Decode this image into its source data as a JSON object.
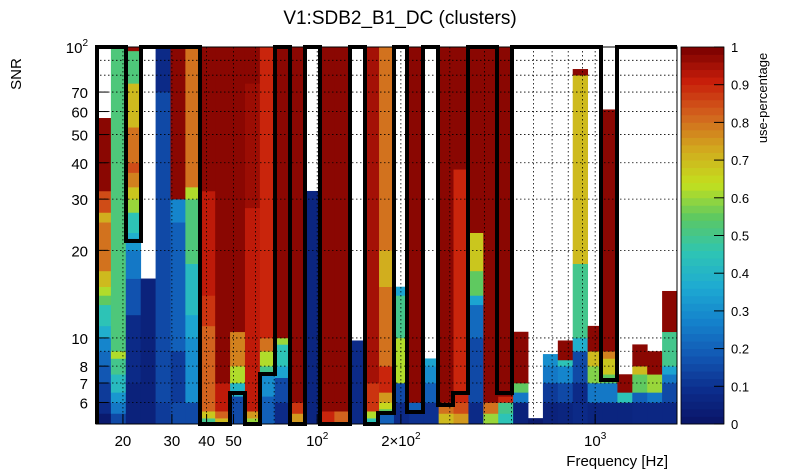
{
  "chart_data": {
    "type": "heatmap",
    "title": "V1:SDB2_B1_DC (clusters)",
    "xlabel": "Frequency [Hz]",
    "ylabel": "SNR",
    "zlabel": "use-percentage",
    "xscale": "log",
    "yscale": "log",
    "xlim": [
      16,
      1970
    ],
    "ylim": [
      5.06,
      100
    ],
    "zlim": [
      0,
      1
    ],
    "grid": true,
    "x_ticks": [
      {
        "value": 20,
        "label": "20"
      },
      {
        "value": 30,
        "label": "30"
      },
      {
        "value": 40,
        "label": "40"
      },
      {
        "value": 50,
        "label": "50"
      },
      {
        "value": 100,
        "label": "10",
        "exp": "2"
      },
      {
        "value": 200,
        "label": "2×10",
        "exp": "2"
      },
      {
        "value": 1000,
        "label": "10",
        "exp": "3"
      }
    ],
    "y_ticks": [
      {
        "value": 100,
        "label": "10",
        "exp": "2"
      },
      {
        "value": 70,
        "label": "70"
      },
      {
        "value": 60,
        "label": "60"
      },
      {
        "value": 50,
        "label": "50"
      },
      {
        "value": 40,
        "label": "40"
      },
      {
        "value": 30,
        "label": "30"
      },
      {
        "value": 20,
        "label": "20"
      },
      {
        "value": 10,
        "label": "10"
      },
      {
        "value": 8,
        "label": "8"
      },
      {
        "value": 7,
        "label": "7"
      },
      {
        "value": 6,
        "label": "6"
      }
    ],
    "z_ticks": [
      "0",
      "0.1",
      "0.2",
      "0.3",
      "0.4",
      "0.5",
      "0.6",
      "0.7",
      "0.8",
      "0.9",
      "1"
    ],
    "columns_note": "each column = log-frequency bin; segments [upper SNR, use-percentage], starting at ylim[0]; null = empty",
    "columns": [
      [
        [
          5.5,
          0.02
        ],
        [
          6,
          0.08
        ],
        [
          7,
          0.12
        ],
        [
          8,
          0.18
        ],
        [
          9,
          0.22
        ],
        [
          10,
          0.28
        ],
        [
          11,
          0.38
        ],
        [
          13,
          0.45
        ],
        [
          14,
          0.55
        ],
        [
          15,
          0.62
        ],
        [
          17,
          0.7
        ],
        [
          25,
          0.8
        ],
        [
          27,
          0.72
        ],
        [
          32,
          0.85
        ],
        [
          57,
          0.98
        ],
        [
          100,
          null
        ]
      ],
      [
        [
          5.5,
          0.15
        ],
        [
          6,
          0.25
        ],
        [
          6.5,
          0.32
        ],
        [
          7.5,
          0.42
        ],
        [
          8.5,
          0.5
        ],
        [
          9,
          0.62
        ],
        [
          100,
          0.52
        ]
      ],
      [
        [
          7,
          0.05
        ],
        [
          12,
          0.08
        ],
        [
          16,
          0.17
        ],
        [
          20,
          0.25
        ],
        [
          22,
          0.32
        ],
        [
          23,
          0.38
        ],
        [
          27,
          0.45
        ],
        [
          30,
          0.6
        ],
        [
          33,
          0.68
        ],
        [
          37,
          0.78
        ],
        [
          40,
          0.85
        ],
        [
          53,
          0.8
        ],
        [
          75,
          0.7
        ],
        [
          97,
          0.52
        ],
        [
          100,
          0.97
        ]
      ],
      [
        [
          16,
          0.05
        ],
        [
          100,
          null
        ]
      ],
      [
        [
          6,
          0.12
        ],
        [
          70,
          0.15
        ],
        [
          100,
          0.08
        ]
      ],
      [
        [
          6,
          0.15
        ],
        [
          9,
          0.12
        ],
        [
          25,
          0.2
        ],
        [
          30,
          0.28
        ],
        [
          100,
          0.98
        ]
      ],
      [
        [
          6,
          0.15
        ],
        [
          10,
          0.3
        ],
        [
          12,
          0.35
        ],
        [
          18,
          0.42
        ],
        [
          30,
          0.52
        ],
        [
          33,
          0.62
        ],
        [
          100,
          0.8
        ]
      ],
      [
        [
          5.3,
          0.5
        ],
        [
          5.6,
          0.68
        ],
        [
          11,
          0.82
        ],
        [
          14,
          0.88
        ],
        [
          32,
          0.92
        ],
        [
          100,
          0.98
        ]
      ],
      [
        [
          5.3,
          0.7
        ],
        [
          5.6,
          0.82
        ],
        [
          7,
          0.92
        ],
        [
          100,
          0.98
        ]
      ],
      [
        [
          6.3,
          0.15
        ],
        [
          7,
          0.4
        ],
        [
          8,
          0.62
        ],
        [
          10.5,
          0.78
        ],
        [
          100,
          0.98
        ]
      ],
      [
        [
          5.3,
          0.6
        ],
        [
          5.6,
          0.75
        ],
        [
          28,
          0.92
        ],
        [
          75,
          0.96
        ],
        [
          100,
          0.98
        ]
      ],
      [
        [
          6.3,
          0.2
        ],
        [
          7.5,
          0.3
        ],
        [
          8,
          0.5
        ],
        [
          9,
          0.62
        ],
        [
          10,
          0.8
        ],
        [
          100,
          0.9
        ]
      ],
      [
        [
          6,
          0.08
        ],
        [
          7.3,
          0.15
        ],
        [
          8,
          0.35
        ],
        [
          9.5,
          0.45
        ],
        [
          10,
          0.6
        ],
        [
          100,
          0.98
        ]
      ],
      [
        [
          5.5,
          0.75
        ],
        [
          6,
          0.88
        ],
        [
          100,
          0.98
        ]
      ],
      [
        [
          32,
          0.06
        ],
        [
          100,
          null
        ]
      ],
      [
        [
          5.6,
          0.9
        ],
        [
          100,
          0.98
        ]
      ],
      [
        [
          5.6,
          0.82
        ],
        [
          100,
          0.98
        ]
      ],
      [
        [
          9.8,
          0.08
        ],
        [
          100,
          null
        ]
      ],
      [
        [
          5.3,
          0.45
        ],
        [
          5.6,
          0.62
        ],
        [
          7,
          0.88
        ],
        [
          100,
          0.95
        ]
      ],
      [
        [
          5.5,
          0.2
        ],
        [
          5.7,
          0.55
        ],
        [
          6,
          0.65
        ],
        [
          6.5,
          0.75
        ],
        [
          8,
          0.9
        ],
        [
          15,
          0.8
        ],
        [
          20,
          0.72
        ],
        [
          100,
          0.8
        ]
      ],
      [
        [
          6,
          0.08
        ],
        [
          7,
          0.15
        ],
        [
          10,
          0.62
        ],
        [
          14,
          0.5
        ],
        [
          15,
          0.35
        ],
        [
          100,
          null
        ]
      ],
      [
        [
          5.5,
          0.1
        ],
        [
          6,
          0.2
        ],
        [
          100,
          0.98
        ]
      ],
      [
        [
          6,
          0.1
        ],
        [
          7,
          0.2
        ],
        [
          8,
          0.3
        ],
        [
          8.5,
          0.35
        ],
        [
          100,
          null
        ]
      ],
      [
        [
          5.5,
          0.7
        ],
        [
          6,
          0.8
        ],
        [
          100,
          0.98
        ]
      ],
      [
        [
          5.5,
          0.75
        ],
        [
          6,
          0.85
        ],
        [
          38,
          0.9
        ],
        [
          100,
          0.98
        ]
      ],
      [
        [
          6,
          0.08
        ],
        [
          10,
          0.15
        ],
        [
          13,
          0.22
        ],
        [
          14,
          0.35
        ],
        [
          17,
          0.55
        ],
        [
          23,
          0.68
        ],
        [
          100,
          0.98
        ]
      ],
      [
        [
          5.5,
          0.6
        ],
        [
          6,
          0.8
        ],
        [
          100,
          0.98
        ]
      ],
      [
        [
          5.5,
          0.45
        ],
        [
          6,
          0.5
        ],
        [
          6.3,
          0.9
        ],
        [
          100,
          0.98
        ]
      ],
      [
        [
          6,
          0.05
        ],
        [
          6.5,
          0.25
        ],
        [
          7,
          0.55
        ],
        [
          10.5,
          0.98
        ],
        [
          100,
          null
        ]
      ],
      [
        [
          5.3,
          0.02
        ],
        [
          100,
          null
        ]
      ],
      [
        [
          6,
          0.05
        ],
        [
          7,
          0.12
        ],
        [
          8,
          0.25
        ],
        [
          8.8,
          0.3
        ],
        [
          100,
          null
        ]
      ],
      [
        [
          6,
          0.06
        ],
        [
          7,
          0.15
        ],
        [
          8,
          0.28
        ],
        [
          8.4,
          0.45
        ],
        [
          9.8,
          0.98
        ],
        [
          100,
          null
        ]
      ],
      [
        [
          7,
          0.08
        ],
        [
          9,
          0.15
        ],
        [
          10,
          0.38
        ],
        [
          18,
          0.5
        ],
        [
          80,
          0.7
        ],
        [
          84,
          0.98
        ],
        [
          100,
          null
        ]
      ],
      [
        [
          6,
          0.06
        ],
        [
          7,
          0.25
        ],
        [
          8,
          0.58
        ],
        [
          9,
          0.7
        ],
        [
          11,
          0.98
        ],
        [
          100,
          null
        ]
      ],
      [
        [
          6,
          0.06
        ],
        [
          7,
          0.25
        ],
        [
          7.5,
          0.55
        ],
        [
          8.5,
          0.68
        ],
        [
          9,
          0.78
        ],
        [
          61,
          0.98
        ],
        [
          100,
          null
        ]
      ],
      [
        [
          6,
          0.06
        ],
        [
          6.5,
          0.45
        ],
        [
          7.5,
          0.98
        ],
        [
          100,
          null
        ]
      ],
      [
        [
          6,
          0.07
        ],
        [
          6.5,
          0.2
        ],
        [
          7.5,
          0.55
        ],
        [
          8,
          0.7
        ],
        [
          9.5,
          0.98
        ],
        [
          100,
          null
        ]
      ],
      [
        [
          6,
          0.07
        ],
        [
          6.5,
          0.25
        ],
        [
          7.5,
          0.6
        ],
        [
          9,
          0.98
        ],
        [
          100,
          null
        ]
      ],
      [
        [
          6,
          0.07
        ],
        [
          7,
          0.15
        ],
        [
          7.5,
          0.25
        ],
        [
          8,
          0.35
        ],
        [
          10.5,
          0.5
        ],
        [
          14.5,
          0.98
        ],
        [
          100,
          null
        ]
      ]
    ],
    "palette": [
      "#0a1466",
      "#0c2d8c",
      "#1258b4",
      "#1482cc",
      "#1eaad2",
      "#2ec4b4",
      "#5ac864",
      "#c3e01e",
      "#d2aa1e",
      "#d2641e",
      "#c81e0a",
      "#780000"
    ]
  }
}
